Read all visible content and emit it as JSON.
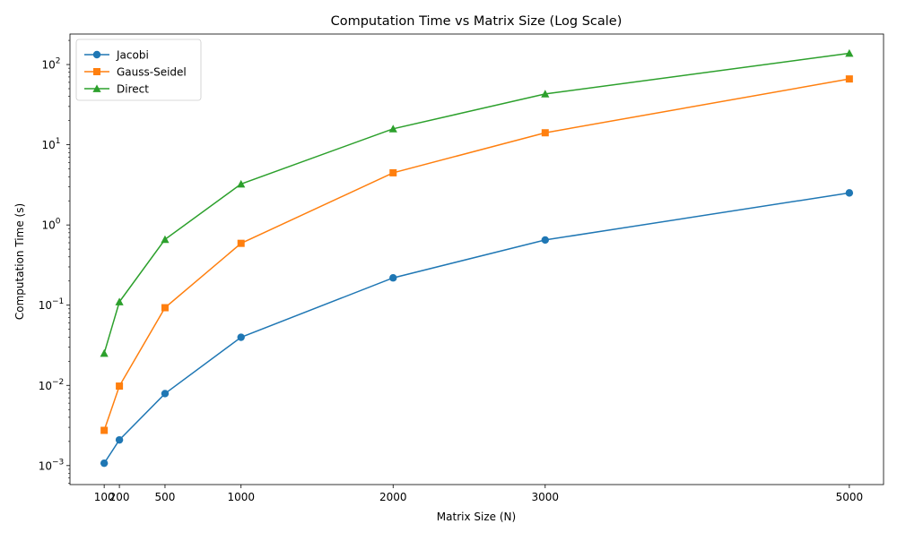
{
  "chart_data": {
    "type": "line",
    "title": "Computation Time vs Matrix Size (Log Scale)",
    "xlabel": "Matrix Size (N)",
    "ylabel": "Computation Time (s)",
    "x": [
      100,
      200,
      500,
      1000,
      2000,
      3000,
      5000
    ],
    "x_tick_labels": [
      "100",
      "200",
      "500",
      "1000",
      "2000",
      "3000",
      "5000"
    ],
    "xlim": [
      -125,
      5225
    ],
    "y_scale": "log",
    "ylim": [
      0.00058,
      240
    ],
    "y_ticks": [
      {
        "value": 0.001,
        "base": "10",
        "exp": "−3"
      },
      {
        "value": 0.01,
        "base": "10",
        "exp": "−2"
      },
      {
        "value": 0.1,
        "base": "10",
        "exp": "−1"
      },
      {
        "value": 1,
        "base": "10",
        "exp": "0"
      },
      {
        "value": 10,
        "base": "10",
        "exp": "1"
      },
      {
        "value": 100,
        "base": "10",
        "exp": "2"
      }
    ],
    "grid": false,
    "legend_position": "upper left",
    "series": [
      {
        "name": "Jacobi",
        "marker": "circle",
        "color": "#1f77b4",
        "values": [
          0.00107,
          0.00209,
          0.0079,
          0.0398,
          0.219,
          0.65,
          2.51
        ]
      },
      {
        "name": "Gauss-Seidel",
        "marker": "square",
        "color": "#ff7f0e",
        "values": [
          0.00275,
          0.0098,
          0.093,
          0.59,
          4.47,
          14.1,
          66.1
        ]
      },
      {
        "name": "Direct",
        "marker": "triangle",
        "color": "#2ca02c",
        "values": [
          0.0251,
          0.11,
          0.66,
          3.24,
          15.8,
          43.0,
          138
        ]
      }
    ]
  }
}
